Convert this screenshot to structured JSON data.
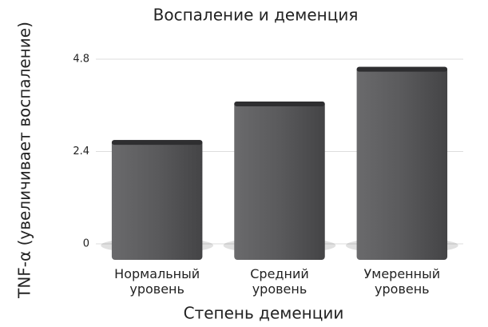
{
  "chart_data": {
    "type": "bar",
    "title": "Воспаление и деменция",
    "x_label": "Степень деменции",
    "y_label": "TNF-α (увеличивает воспаление)",
    "categories": [
      "Нормальный уровень",
      "Средний уровень",
      "Умеренный уровень"
    ],
    "values": [
      2.7,
      3.7,
      4.6
    ],
    "color": "#58585a",
    "ylim": [
      0,
      4.8
    ],
    "yticks": [
      0,
      2.4,
      4.8
    ],
    "grid": true
  }
}
